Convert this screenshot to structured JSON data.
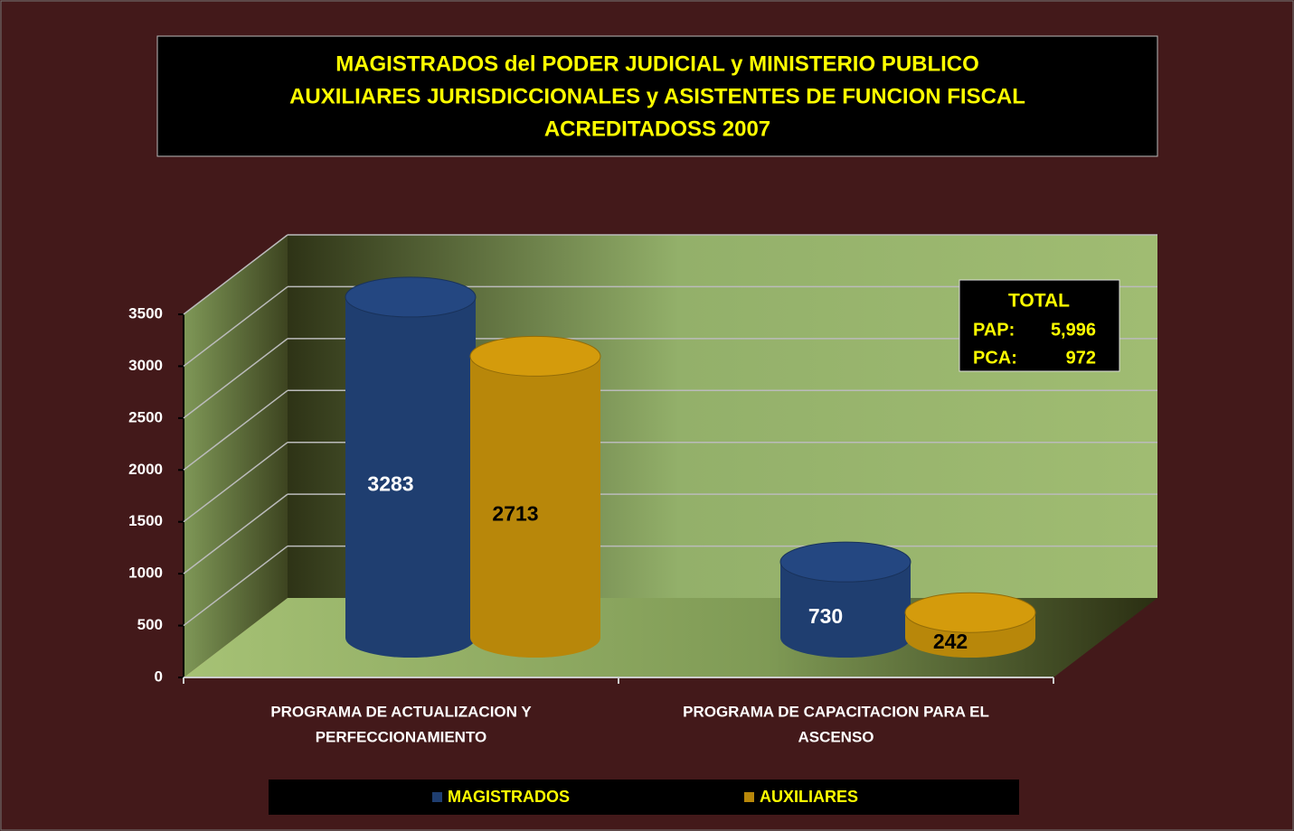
{
  "chart_data": {
    "type": "bar",
    "title": [
      "MAGISTRADOS   del   PODER JUDICIAL  y  MINISTERIO PUBLICO",
      "AUXILIARES JURISDICCIONALES    y   ASISTENTES DE FUNCION FISCAL",
      "ACREDITADOSS     2007"
    ],
    "categories": [
      [
        "PROGRAMA DE ACTUALIZACION   Y",
        "PERFECCIONAMIENTO"
      ],
      [
        "PROGRAMA DE CAPACITACION PARA EL",
        "ASCENSO"
      ]
    ],
    "series": [
      {
        "name": "MAGISTRADOS",
        "color": "#1f3e70",
        "values": [
          3283,
          730
        ]
      },
      {
        "name": "AUXILIARES",
        "color": "#b8870a",
        "values": [
          2713,
          242
        ]
      }
    ],
    "ylim": [
      0,
      3500
    ],
    "yticks": [
      0,
      500,
      1000,
      1500,
      2000,
      2500,
      3000,
      3500
    ],
    "grid": true,
    "annotation": {
      "title": "TOTAL",
      "rows": [
        [
          "PAP:",
          "5,996"
        ],
        [
          "PCA:",
          "972"
        ]
      ]
    }
  }
}
